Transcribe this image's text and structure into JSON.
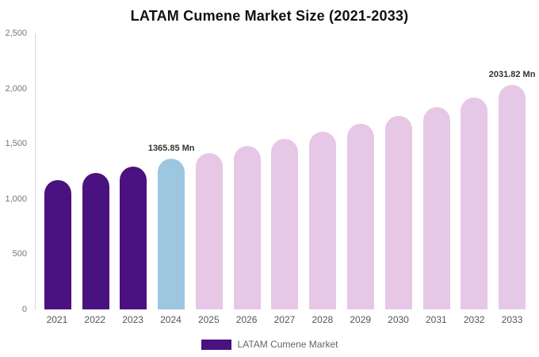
{
  "title": "LATAM Cumene Market Size (2021-2033)",
  "legend": {
    "label": "LATAM Cumene Market",
    "swatch_color": "#4a1180"
  },
  "colors": {
    "historical_purple": "#4a1180",
    "current_year_blue": "#9dc6e0",
    "forecast_pink": "#e6c7e6",
    "axis_line": "#d9d9d9"
  },
  "chart_data": {
    "type": "bar",
    "title": "LATAM Cumene Market Size (2021-2033)",
    "xlabel": "",
    "ylabel": "",
    "ylim": [
      0,
      2500
    ],
    "grid": false,
    "legend_position": "bottom",
    "categories": [
      "2021",
      "2022",
      "2023",
      "2024",
      "2025",
      "2026",
      "2027",
      "2028",
      "2029",
      "2030",
      "2031",
      "2032",
      "2033"
    ],
    "values": [
      1170,
      1235,
      1295,
      1365.85,
      1415,
      1480,
      1545,
      1610,
      1680,
      1755,
      1835,
      1920,
      2031.82
    ],
    "y_ticks": [
      "0",
      "500",
      "1,000",
      "1,500",
      "2,000",
      "2,500"
    ],
    "bar_colors": [
      "#4a1180",
      "#4a1180",
      "#4a1180",
      "#9dc6e0",
      "#e6c7e6",
      "#e6c7e6",
      "#e6c7e6",
      "#e6c7e6",
      "#e6c7e6",
      "#e6c7e6",
      "#e6c7e6",
      "#e6c7e6",
      "#e6c7e6"
    ],
    "annotations": [
      {
        "index": 3,
        "text": "1365.85 Mn"
      },
      {
        "index": 12,
        "text": "2031.82 Mn"
      }
    ]
  }
}
